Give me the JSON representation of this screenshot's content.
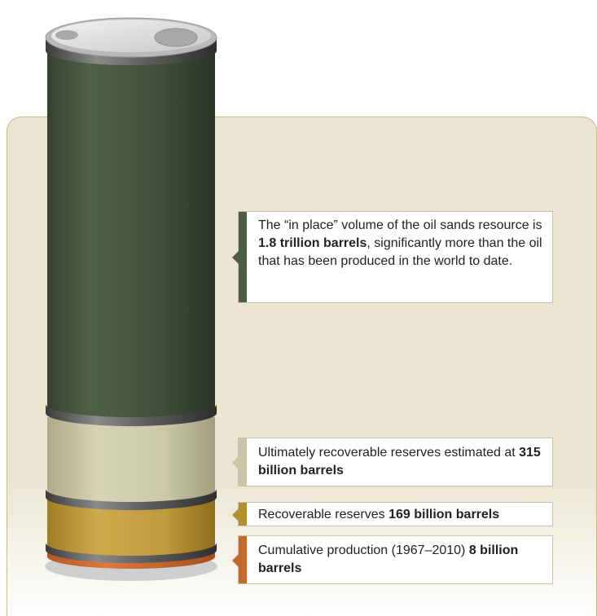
{
  "colors": {
    "in_place": "#4d5e44",
    "ultimately_recoverable": "#c9c6a8",
    "recoverable": "#b48f2e",
    "cumulative": "#c4682c",
    "panel_bg": "#ebe5d1"
  },
  "callouts": {
    "in_place": {
      "pre": "The “in place” volume of the oil sands resource is ",
      "bold": "1.8 trillion barrels",
      "post": ", significantly more than the oil that has been produced in the world to date."
    },
    "ultimately_recoverable": {
      "pre": "Ultimately recoverable reserves estimated at ",
      "bold": "315 billion barrels"
    },
    "recoverable": {
      "pre": "Recoverable reserves ",
      "bold": "169 billion barrels"
    },
    "cumulative": {
      "pre": "Cumulative production (1967–2010) ",
      "bold": "8 billion barrels"
    }
  }
}
